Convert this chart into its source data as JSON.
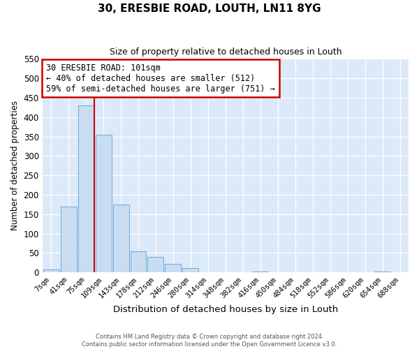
{
  "title": "30, ERESBIE ROAD, LOUTH, LN11 8YG",
  "subtitle": "Size of property relative to detached houses in Louth",
  "xlabel": "Distribution of detached houses by size in Louth",
  "ylabel": "Number of detached properties",
  "bar_labels": [
    "7sqm",
    "41sqm",
    "75sqm",
    "109sqm",
    "143sqm",
    "178sqm",
    "212sqm",
    "246sqm",
    "280sqm",
    "314sqm",
    "348sqm",
    "382sqm",
    "416sqm",
    "450sqm",
    "484sqm",
    "518sqm",
    "552sqm",
    "586sqm",
    "620sqm",
    "654sqm",
    "688sqm"
  ],
  "bar_heights": [
    8,
    170,
    430,
    355,
    175,
    55,
    40,
    22,
    11,
    0,
    0,
    0,
    2,
    0,
    0,
    0,
    0,
    0,
    0,
    2,
    0
  ],
  "bar_color": "#c9ddf2",
  "bar_edge_color": "#6baad8",
  "ylim": [
    0,
    550
  ],
  "yticks": [
    0,
    50,
    100,
    150,
    200,
    250,
    300,
    350,
    400,
    450,
    500,
    550
  ],
  "vline_color": "#cc0000",
  "annotation_title": "30 ERESBIE ROAD: 101sqm",
  "annotation_line1": "← 40% of detached houses are smaller (512)",
  "annotation_line2": "59% of semi-detached houses are larger (751) →",
  "box_color": "#cc0000",
  "footer1": "Contains HM Land Registry data © Crown copyright and database right 2024.",
  "footer2": "Contains public sector information licensed under the Open Government Licence v3.0.",
  "plot_bg_color": "#dce9f8",
  "fig_bg_color": "#ffffff",
  "grid_color": "#ffffff"
}
